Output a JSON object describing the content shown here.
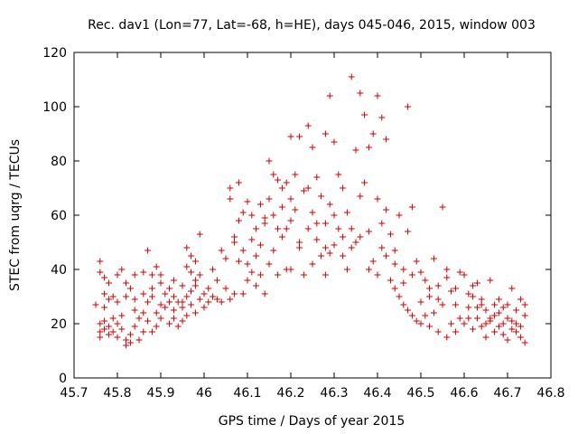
{
  "chart_data": {
    "type": "scatter",
    "title": "Rec. dav1 (Lon=77, Lat=-68, h=HE), days 045-046, 2015, window 003",
    "xlabel": "GPS time / Days of year 2015",
    "ylabel": "STEC from uqrg / TECUs",
    "xlim": [
      45.7,
      46.8
    ],
    "ylim": [
      0,
      120
    ],
    "xticks": [
      "45.7",
      "45.8",
      "45.9",
      "46",
      "46.1",
      "46.2",
      "46.3",
      "46.4",
      "46.5",
      "46.6",
      "46.7",
      "46.8"
    ],
    "yticks": [
      "0",
      "20",
      "40",
      "60",
      "80",
      "100",
      "120"
    ],
    "grid": false,
    "legend": "none",
    "marker": "plus",
    "color": "#cc0000",
    "series": [
      {
        "name": "STEC",
        "points": [
          [
            45.76,
            43
          ],
          [
            45.76,
            39
          ],
          [
            45.77,
            37
          ],
          [
            45.77,
            31
          ],
          [
            45.78,
            35
          ],
          [
            45.79,
            30
          ],
          [
            45.8,
            38
          ],
          [
            45.81,
            40
          ],
          [
            45.82,
            35
          ],
          [
            45.83,
            33
          ],
          [
            45.84,
            38
          ],
          [
            45.86,
            39
          ],
          [
            45.87,
            47
          ],
          [
            45.88,
            38
          ],
          [
            45.89,
            41
          ],
          [
            45.9,
            38
          ],
          [
            45.92,
            28
          ],
          [
            45.93,
            30
          ],
          [
            45.95,
            28
          ],
          [
            45.96,
            48
          ],
          [
            45.97,
            45
          ],
          [
            45.98,
            43
          ],
          [
            45.99,
            53
          ],
          [
            45.96,
            41
          ],
          [
            45.98,
            36
          ],
          [
            45.76,
            20
          ],
          [
            45.76,
            17
          ],
          [
            45.76,
            15
          ],
          [
            45.77,
            21
          ],
          [
            45.77,
            18
          ],
          [
            45.78,
            16
          ],
          [
            45.78,
            19
          ],
          [
            45.79,
            22
          ],
          [
            45.79,
            17
          ],
          [
            45.8,
            15
          ],
          [
            45.8,
            20
          ],
          [
            45.81,
            23
          ],
          [
            45.81,
            18
          ],
          [
            45.82,
            14
          ],
          [
            45.82,
            12
          ],
          [
            45.83,
            16
          ],
          [
            45.83,
            13
          ],
          [
            45.84,
            19
          ],
          [
            45.84,
            25
          ],
          [
            45.85,
            14
          ],
          [
            45.85,
            22
          ],
          [
            45.86,
            17
          ],
          [
            45.86,
            24
          ],
          [
            45.87,
            28
          ],
          [
            45.87,
            21
          ],
          [
            45.88,
            30
          ],
          [
            45.88,
            17
          ],
          [
            45.89,
            24
          ],
          [
            45.89,
            19
          ],
          [
            45.9,
            27
          ],
          [
            45.9,
            22
          ],
          [
            45.91,
            31
          ],
          [
            45.91,
            26
          ],
          [
            45.92,
            20
          ],
          [
            45.92,
            33
          ],
          [
            45.93,
            22
          ],
          [
            45.93,
            25
          ],
          [
            45.94,
            19
          ],
          [
            45.94,
            28
          ],
          [
            45.95,
            26
          ],
          [
            45.95,
            21
          ],
          [
            45.96,
            23
          ],
          [
            45.96,
            30
          ],
          [
            45.97,
            27
          ],
          [
            45.97,
            32
          ],
          [
            45.98,
            24
          ],
          [
            45.98,
            34
          ],
          [
            45.99,
            29
          ],
          [
            45.99,
            38
          ],
          [
            45.75,
            27
          ],
          [
            45.77,
            26
          ],
          [
            45.78,
            29
          ],
          [
            45.8,
            28
          ],
          [
            45.82,
            30
          ],
          [
            45.84,
            29
          ],
          [
            45.86,
            31
          ],
          [
            45.88,
            33
          ],
          [
            45.9,
            35
          ],
          [
            45.93,
            36
          ],
          [
            45.95,
            34
          ],
          [
            45.97,
            39
          ],
          [
            46.0,
            31
          ],
          [
            46.0,
            26
          ],
          [
            46.01,
            33
          ],
          [
            46.01,
            28
          ],
          [
            46.02,
            40
          ],
          [
            46.02,
            30
          ],
          [
            46.03,
            29
          ],
          [
            46.03,
            36
          ],
          [
            46.04,
            47
          ],
          [
            46.04,
            28
          ],
          [
            46.05,
            44
          ],
          [
            46.05,
            33
          ],
          [
            46.06,
            70
          ],
          [
            46.06,
            29
          ],
          [
            46.07,
            50
          ],
          [
            46.07,
            31
          ],
          [
            46.08,
            72
          ],
          [
            46.08,
            43
          ],
          [
            46.09,
            61
          ],
          [
            46.09,
            31
          ],
          [
            46.1,
            65
          ],
          [
            46.1,
            36
          ],
          [
            46.11,
            51
          ],
          [
            46.11,
            39
          ],
          [
            46.12,
            55
          ],
          [
            46.12,
            34
          ],
          [
            46.13,
            64
          ],
          [
            46.13,
            49
          ],
          [
            46.14,
            57
          ],
          [
            46.14,
            31
          ],
          [
            46.15,
            80
          ],
          [
            46.15,
            42
          ],
          [
            46.16,
            60
          ],
          [
            46.16,
            47
          ],
          [
            46.17,
            73
          ],
          [
            46.17,
            38
          ],
          [
            46.18,
            70
          ],
          [
            46.18,
            52
          ],
          [
            46.19,
            55
          ],
          [
            46.19,
            40
          ],
          [
            46.06,
            66
          ],
          [
            46.07,
            52
          ],
          [
            46.08,
            58
          ],
          [
            46.09,
            47
          ],
          [
            46.1,
            42
          ],
          [
            46.11,
            60
          ],
          [
            46.12,
            45
          ],
          [
            46.13,
            38
          ],
          [
            46.14,
            59
          ],
          [
            46.15,
            66
          ],
          [
            46.16,
            75
          ],
          [
            46.17,
            55
          ],
          [
            46.18,
            63
          ],
          [
            46.19,
            72
          ],
          [
            46.2,
            89
          ],
          [
            46.2,
            58
          ],
          [
            46.2,
            40
          ],
          [
            46.21,
            75
          ],
          [
            46.21,
            62
          ],
          [
            46.22,
            89
          ],
          [
            46.22,
            48
          ],
          [
            46.23,
            69
          ],
          [
            46.23,
            38
          ],
          [
            46.24,
            93
          ],
          [
            46.24,
            55
          ],
          [
            46.25,
            85
          ],
          [
            46.25,
            61
          ],
          [
            46.25,
            42
          ],
          [
            46.26,
            74
          ],
          [
            46.26,
            51
          ],
          [
            46.27,
            67
          ],
          [
            46.27,
            45
          ],
          [
            46.28,
            90
          ],
          [
            46.28,
            57
          ],
          [
            46.28,
            38
          ],
          [
            46.29,
            104
          ],
          [
            46.29,
            64
          ],
          [
            46.29,
            46
          ],
          [
            46.3,
            87
          ],
          [
            46.3,
            49
          ],
          [
            46.31,
            75
          ],
          [
            46.31,
            55
          ],
          [
            46.32,
            70
          ],
          [
            46.32,
            45
          ],
          [
            46.33,
            61
          ],
          [
            46.33,
            40
          ],
          [
            46.34,
            111
          ],
          [
            46.34,
            55
          ],
          [
            46.35,
            84
          ],
          [
            46.35,
            50
          ],
          [
            46.36,
            105
          ],
          [
            46.36,
            67
          ],
          [
            46.37,
            97
          ],
          [
            46.37,
            72
          ],
          [
            46.38,
            85
          ],
          [
            46.38,
            54
          ],
          [
            46.39,
            90
          ],
          [
            46.39,
            43
          ],
          [
            46.4,
            104
          ],
          [
            46.4,
            66
          ],
          [
            46.41,
            96
          ],
          [
            46.41,
            57
          ],
          [
            46.42,
            88
          ],
          [
            46.42,
            45
          ],
          [
            46.2,
            66
          ],
          [
            46.22,
            50
          ],
          [
            46.24,
            70
          ],
          [
            46.26,
            57
          ],
          [
            46.28,
            48
          ],
          [
            46.3,
            60
          ],
          [
            46.32,
            52
          ],
          [
            46.34,
            48
          ],
          [
            46.36,
            52
          ],
          [
            46.38,
            40
          ],
          [
            46.4,
            38
          ],
          [
            46.41,
            48
          ],
          [
            46.42,
            62
          ],
          [
            46.43,
            53
          ],
          [
            46.43,
            36
          ],
          [
            46.44,
            47
          ],
          [
            46.44,
            33
          ],
          [
            46.45,
            60
          ],
          [
            46.45,
            30
          ],
          [
            46.46,
            40
          ],
          [
            46.46,
            27
          ],
          [
            46.47,
            100
          ],
          [
            46.47,
            54
          ],
          [
            46.47,
            25
          ],
          [
            46.48,
            63
          ],
          [
            46.48,
            23
          ],
          [
            46.49,
            43
          ],
          [
            46.49,
            21
          ],
          [
            46.5,
            39
          ],
          [
            46.5,
            20
          ],
          [
            46.51,
            36
          ],
          [
            46.51,
            23
          ],
          [
            46.52,
            30
          ],
          [
            46.52,
            19
          ],
          [
            46.53,
            44
          ],
          [
            46.53,
            24
          ],
          [
            46.54,
            34
          ],
          [
            46.54,
            17
          ],
          [
            46.55,
            63
          ],
          [
            46.55,
            27
          ],
          [
            46.56,
            37
          ],
          [
            46.56,
            15
          ],
          [
            46.57,
            32
          ],
          [
            46.57,
            20
          ],
          [
            46.58,
            27
          ],
          [
            46.58,
            17
          ],
          [
            46.59,
            39
          ],
          [
            46.59,
            22
          ],
          [
            46.44,
            42
          ],
          [
            46.46,
            35
          ],
          [
            46.48,
            38
          ],
          [
            46.5,
            28
          ],
          [
            46.52,
            33
          ],
          [
            46.54,
            29
          ],
          [
            46.56,
            40
          ],
          [
            46.58,
            33
          ],
          [
            46.6,
            38
          ],
          [
            46.6,
            20
          ],
          [
            46.61,
            31
          ],
          [
            46.61,
            26
          ],
          [
            46.62,
            30
          ],
          [
            46.62,
            18
          ],
          [
            46.63,
            35
          ],
          [
            46.63,
            22
          ],
          [
            46.64,
            29
          ],
          [
            46.64,
            19
          ],
          [
            46.65,
            25
          ],
          [
            46.65,
            15
          ],
          [
            46.66,
            36
          ],
          [
            46.66,
            22
          ],
          [
            46.67,
            27
          ],
          [
            46.67,
            17
          ],
          [
            46.68,
            24
          ],
          [
            46.68,
            19
          ],
          [
            46.69,
            26
          ],
          [
            46.69,
            16
          ],
          [
            46.7,
            22
          ],
          [
            46.7,
            14
          ],
          [
            46.71,
            33
          ],
          [
            46.71,
            21
          ],
          [
            46.72,
            25
          ],
          [
            46.72,
            17
          ],
          [
            46.73,
            29
          ],
          [
            46.73,
            15
          ],
          [
            46.74,
            23
          ],
          [
            46.74,
            13
          ],
          [
            46.62,
            34
          ],
          [
            46.64,
            27
          ],
          [
            46.66,
            21
          ],
          [
            46.68,
            29
          ],
          [
            46.7,
            27
          ],
          [
            46.72,
            20
          ],
          [
            46.74,
            27
          ],
          [
            46.61,
            22
          ],
          [
            46.63,
            26
          ],
          [
            46.65,
            20
          ],
          [
            46.67,
            23
          ],
          [
            46.69,
            20
          ],
          [
            46.71,
            18
          ],
          [
            46.73,
            19
          ]
        ]
      }
    ]
  }
}
